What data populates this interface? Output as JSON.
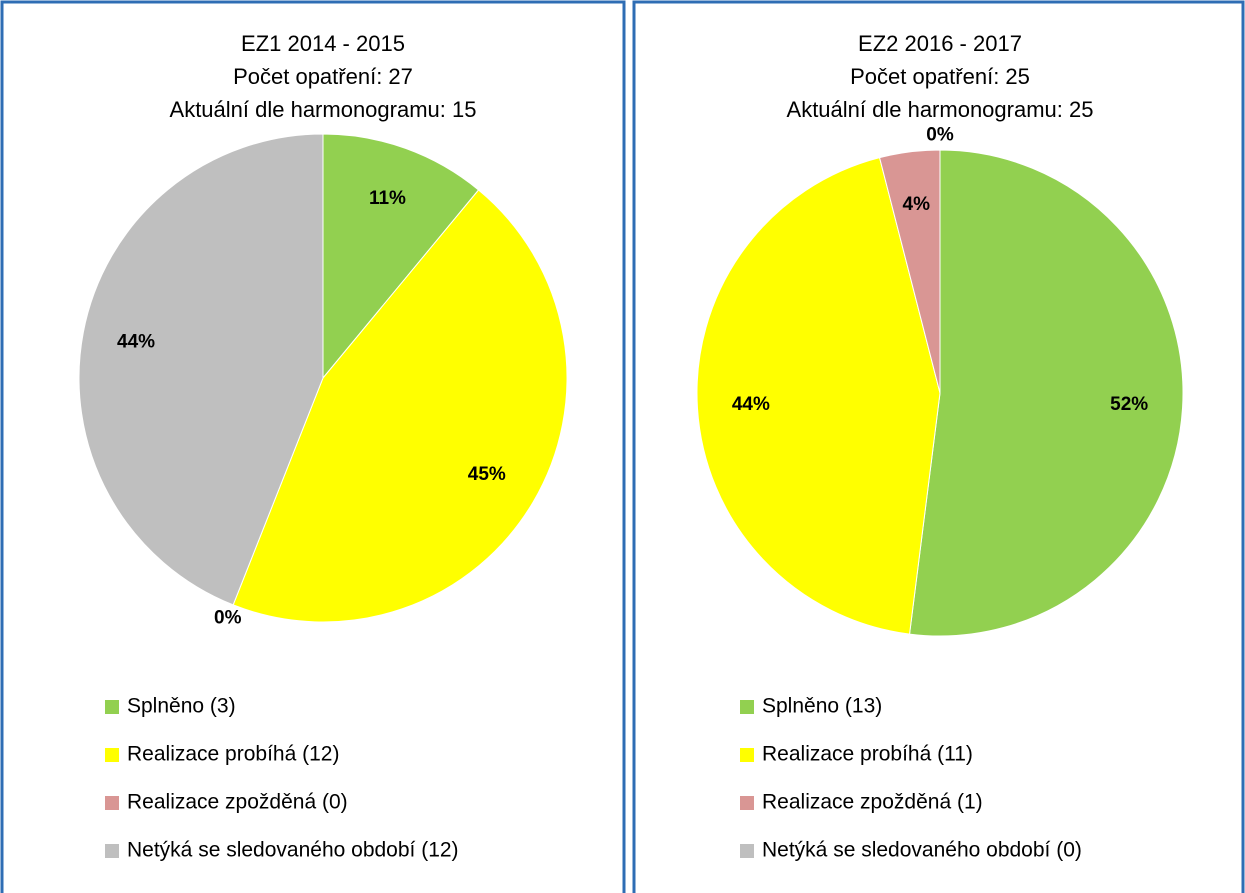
{
  "chart_data": [
    {
      "type": "pie",
      "title": [
        "EZ1 2014 - 2015",
        "Počet opatření: 27",
        "Aktuální dle harmonogramu: 15"
      ],
      "categories": [
        "Splněno (3)",
        "Realizace probíhá (12)",
        "Realizace zpožděná (0)",
        "Netýká se sledovaného období (12)"
      ],
      "values": [
        11,
        45,
        0,
        44
      ],
      "value_labels": [
        "11%",
        "45%",
        "0%",
        "44%"
      ],
      "colors": [
        "#92d050",
        "#ffff00",
        "#d99694",
        "#bfbfbf"
      ],
      "legend": "bottom"
    },
    {
      "type": "pie",
      "title": [
        "EZ2 2016 - 2017",
        "Počet opatření: 25",
        "Aktuální dle harmonogramu: 25"
      ],
      "categories": [
        "Splněno (13)",
        "Realizace probíhá (11)",
        "Realizace zpožděná (1)",
        "Netýká se sledovaného období (0)"
      ],
      "values": [
        52,
        44,
        4,
        0
      ],
      "value_labels": [
        "52%",
        "44%",
        "4%",
        "0%"
      ],
      "colors": [
        "#92d050",
        "#ffff00",
        "#d99694",
        "#bfbfbf"
      ],
      "legend": "bottom"
    }
  ]
}
